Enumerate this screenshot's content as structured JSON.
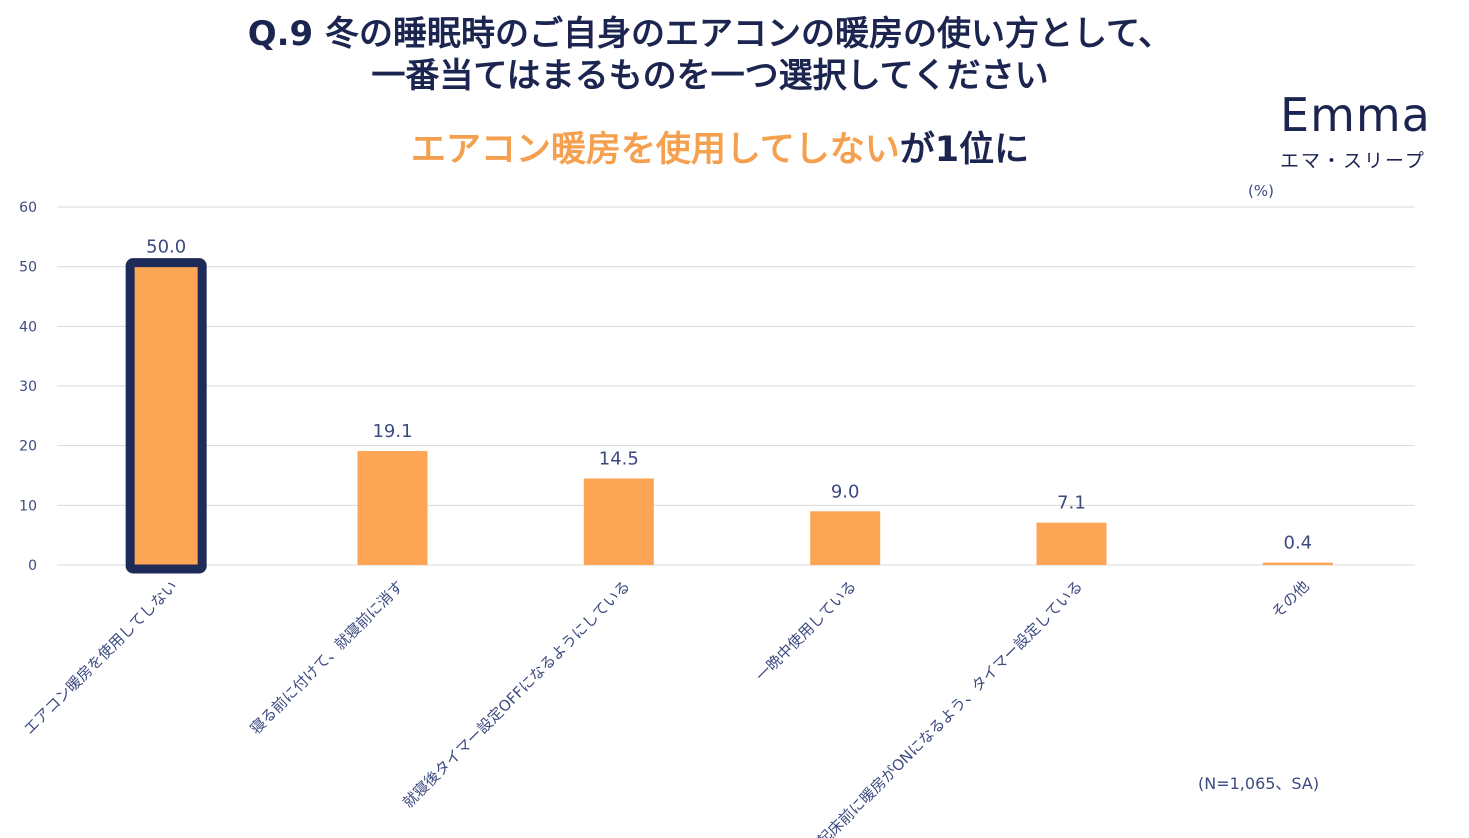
{
  "header": {
    "title_line1": "Q.9 冬の睡眠時のご自身のエアコンの暖房の使い方として、",
    "title_line2": "一番当てはまるものを一つ選択してください",
    "headline_highlight": "エアコン暖房を使用してしない",
    "headline_rest": "が1位に"
  },
  "logo": {
    "word": "Emma",
    "sub": "エマ・スリープ"
  },
  "unit_label": "(%)",
  "footnote": "(N=1,065、SA)",
  "colors": {
    "bar": "#fba555",
    "highlight_border": "#1e2a57",
    "navy": "#1c2550",
    "accent": "#f5a04e",
    "grid": "#d9d9d9"
  },
  "chart_data": {
    "type": "bar",
    "categories": [
      "エアコン暖房を使用してしない",
      "寝る前に付けて、就寝前に消す",
      "就寝後タイマー設定OFFになるようにしている",
      "一晩中使用している",
      "起床前に暖房がONになるよう、タイマー設定している",
      "その他"
    ],
    "values": [
      50.0,
      19.1,
      14.5,
      9.0,
      7.1,
      0.4
    ],
    "value_labels": [
      "50.0",
      "19.1",
      "14.5",
      "9.0",
      "7.1",
      "0.4"
    ],
    "highlighted_index": 0,
    "ylim": [
      0,
      60
    ],
    "yticks": [
      0,
      10,
      20,
      30,
      40,
      50,
      60
    ],
    "grid": true,
    "legend": "none"
  }
}
